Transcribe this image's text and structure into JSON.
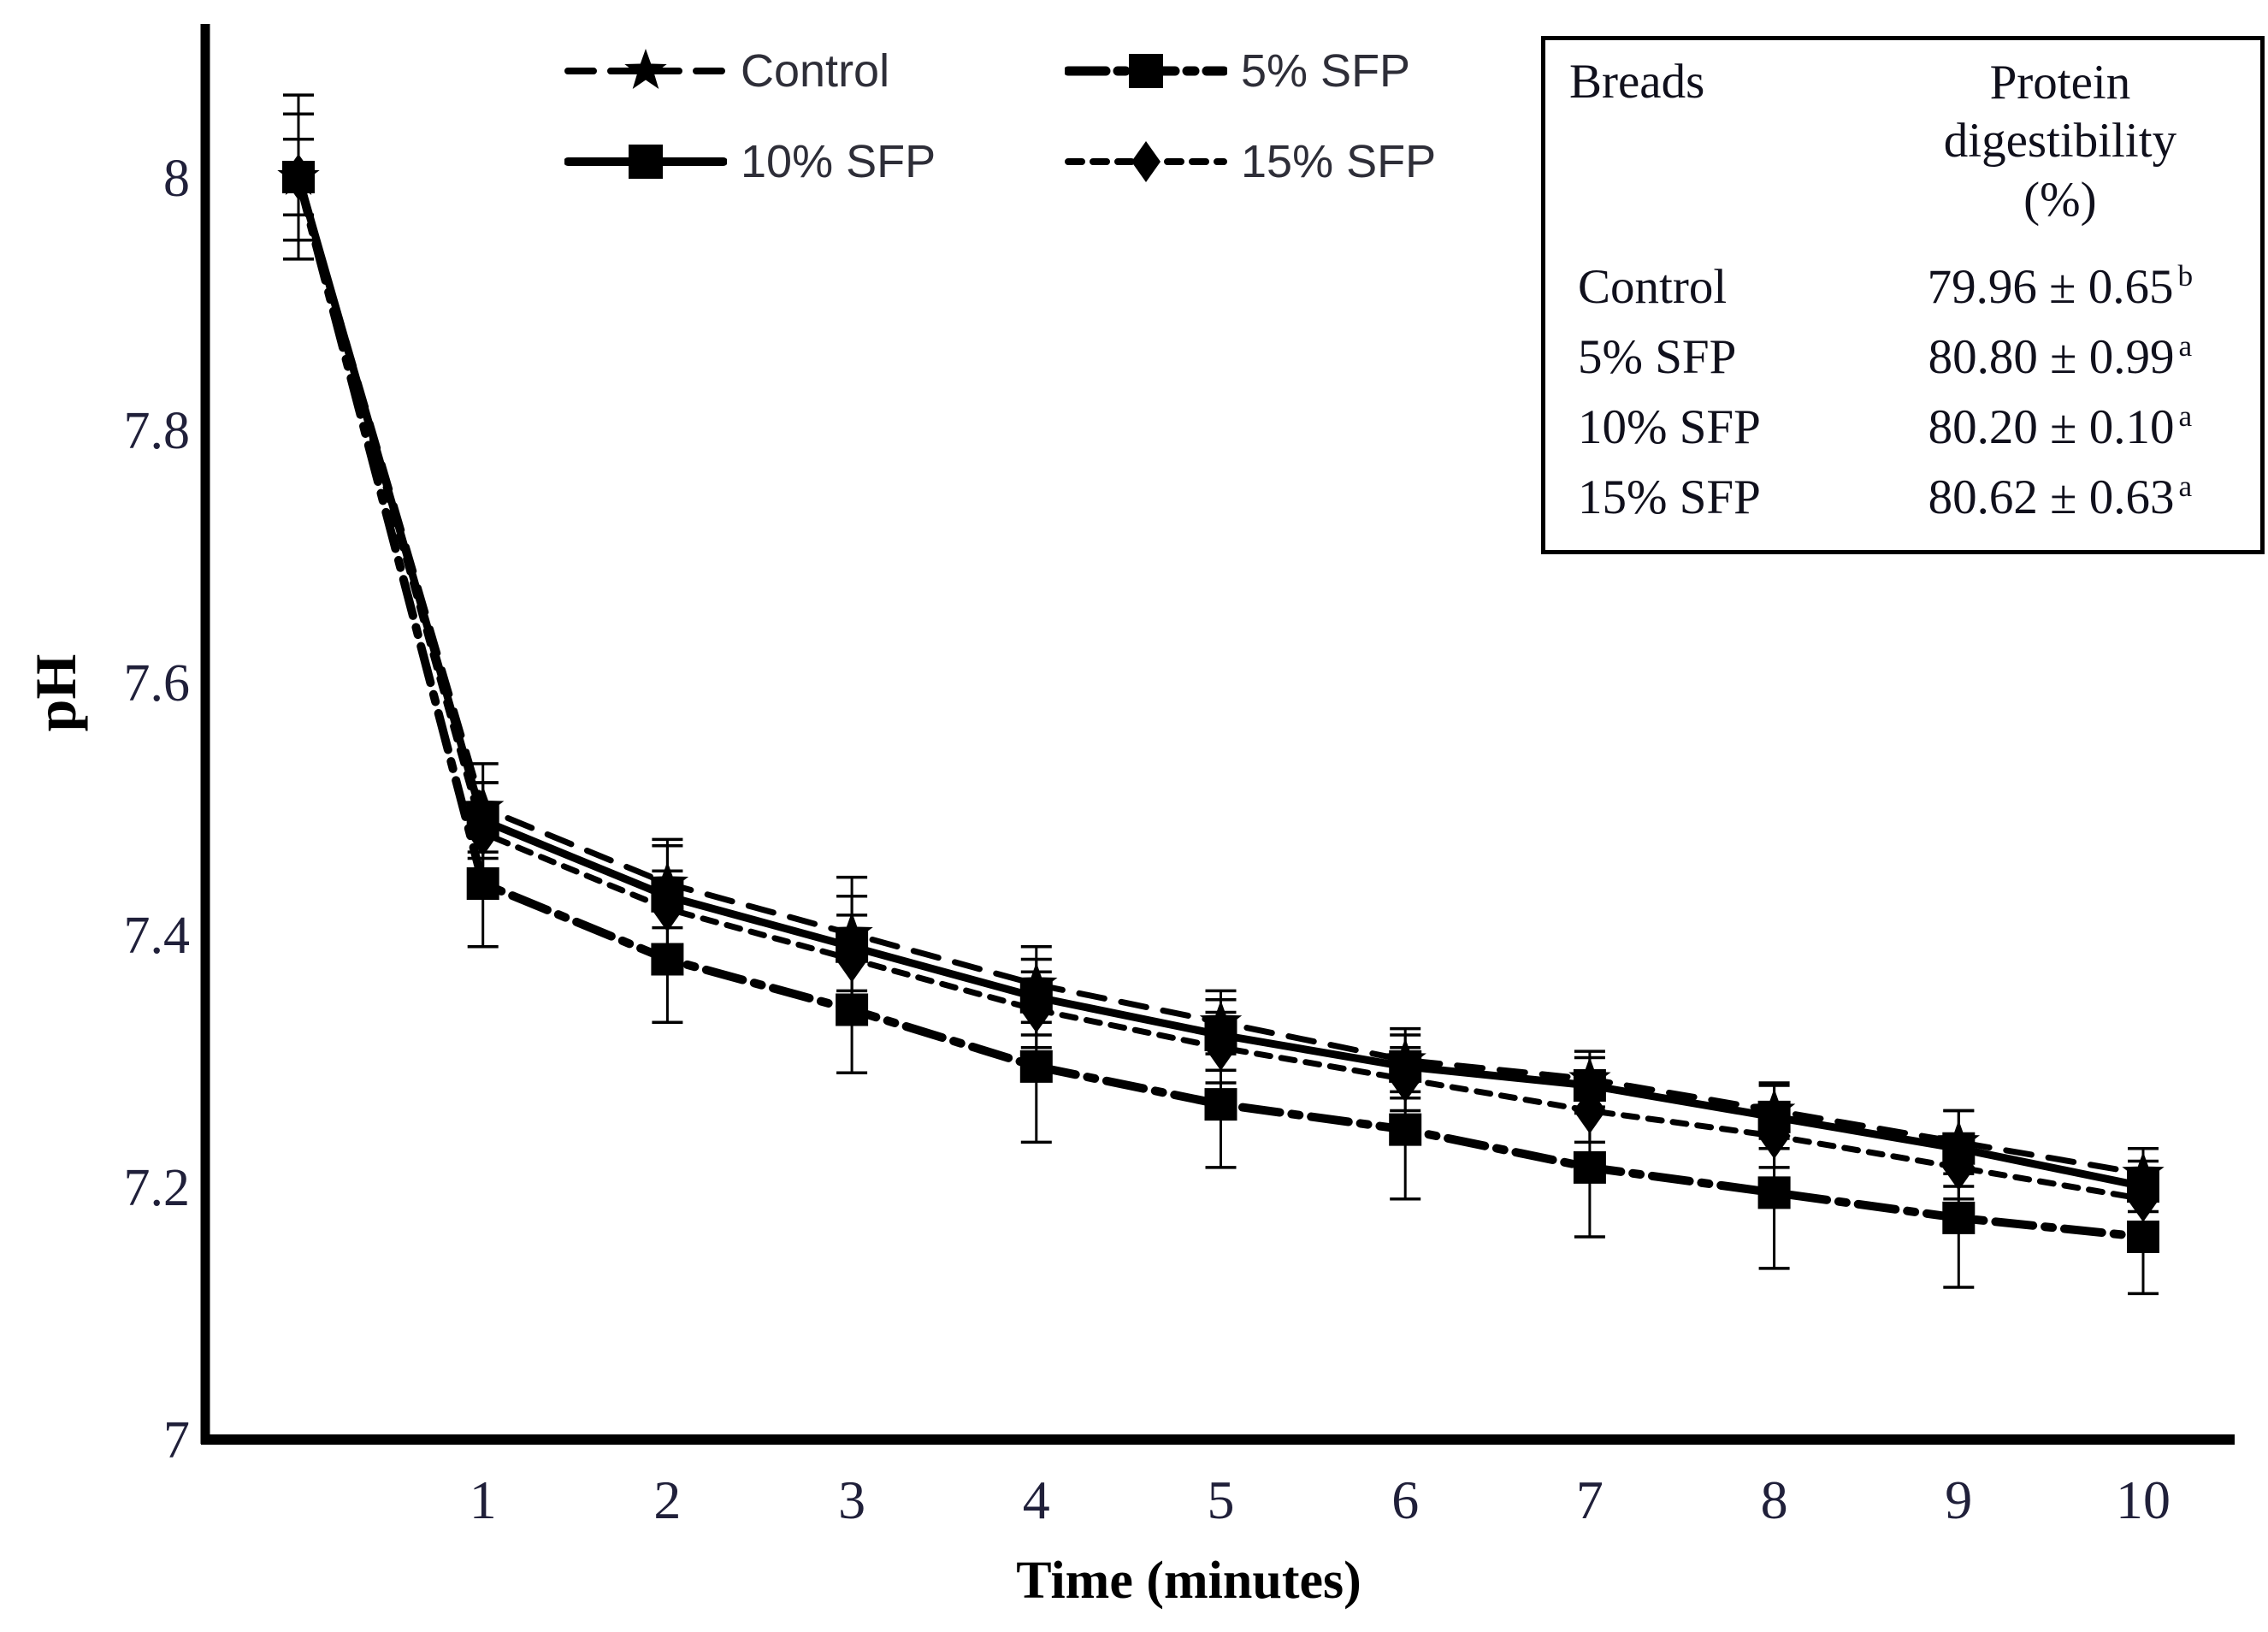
{
  "chart_data": {
    "type": "line",
    "title": "",
    "xlabel": "Time (minutes)",
    "ylabel": "pH",
    "x": [
      0,
      1,
      2,
      3,
      4,
      5,
      6,
      7,
      8,
      9,
      10
    ],
    "x_tick_labels": [
      "1",
      "2",
      "3",
      "4",
      "5",
      "6",
      "7",
      "8",
      "9",
      "10"
    ],
    "y_tick_labels": [
      "7",
      "7.2",
      "7.4",
      "7.6",
      "7.8",
      "8"
    ],
    "y_ticks": [
      7,
      7.2,
      7.4,
      7.6,
      7.8,
      8
    ],
    "x_ticks": [
      1,
      2,
      3,
      4,
      5,
      6,
      7,
      8,
      9,
      10
    ],
    "ylim": [
      7.0,
      8.12
    ],
    "xlim": [
      -0.5,
      10.6
    ],
    "grid": false,
    "legend_position": "top-left-two-columns",
    "series": [
      {
        "name": "Control",
        "marker": "star",
        "line": "dashed",
        "values": [
          8.0,
          7.5,
          7.44,
          7.4,
          7.36,
          7.33,
          7.3,
          7.285,
          7.26,
          7.235,
          7.21
        ],
        "errors": [
          0.065,
          0.035,
          0.035,
          0.045,
          0.03,
          0.025,
          0.025,
          0.022,
          0.022,
          0.025,
          0.02
        ]
      },
      {
        "name": "5% SFP",
        "marker": "square",
        "line": "dash-dot",
        "values": [
          8.0,
          7.44,
          7.38,
          7.34,
          7.295,
          7.265,
          7.245,
          7.215,
          7.195,
          7.175,
          7.16
        ],
        "errors": [
          0.05,
          0.05,
          0.05,
          0.05,
          0.06,
          0.05,
          0.055,
          0.055,
          0.06,
          0.055,
          0.045
        ]
      },
      {
        "name": "10% SFP",
        "marker": "square",
        "line": "solid",
        "values": [
          8.0,
          7.49,
          7.43,
          7.39,
          7.35,
          7.32,
          7.295,
          7.28,
          7.255,
          7.23,
          7.2
        ],
        "errors": [
          0.05,
          0.03,
          0.04,
          0.04,
          0.03,
          0.028,
          0.025,
          0.022,
          0.025,
          0.03,
          0.02
        ]
      },
      {
        "name": "15% SFP",
        "marker": "diamond",
        "line": "short-dash",
        "values": [
          8.0,
          7.48,
          7.42,
          7.38,
          7.34,
          7.31,
          7.285,
          7.26,
          7.24,
          7.215,
          7.19
        ],
        "errors": [
          0.03,
          0.04,
          0.03,
          0.035,
          0.03,
          0.028,
          0.025,
          0.025,
          0.025,
          0.025,
          0.022
        ]
      }
    ]
  },
  "legend": {
    "items": [
      {
        "label": "Control"
      },
      {
        "label": "5% SFP"
      },
      {
        "label": "10% SFP"
      },
      {
        "label": "15% SFP"
      }
    ]
  },
  "inset_table": {
    "col1_header": "Breads",
    "col2_header_lines": [
      "Protein",
      "digestibility",
      "(%)"
    ],
    "rows": [
      {
        "bread": "Control",
        "value": "79.96 ± 0.65",
        "sup": "b"
      },
      {
        "bread": "5% SFP",
        "value": "80.80 ± 0.99",
        "sup": "a"
      },
      {
        "bread": "10% SFP",
        "value": "80.20 ± 0.10",
        "sup": "a"
      },
      {
        "bread": "15% SFP",
        "value": "80.62 ± 0.63",
        "sup": "a"
      }
    ]
  },
  "colors": {
    "ink": "#000000",
    "tick_text": "#20203a",
    "legend_text": "#2e2e38",
    "background": "#ffffff"
  }
}
